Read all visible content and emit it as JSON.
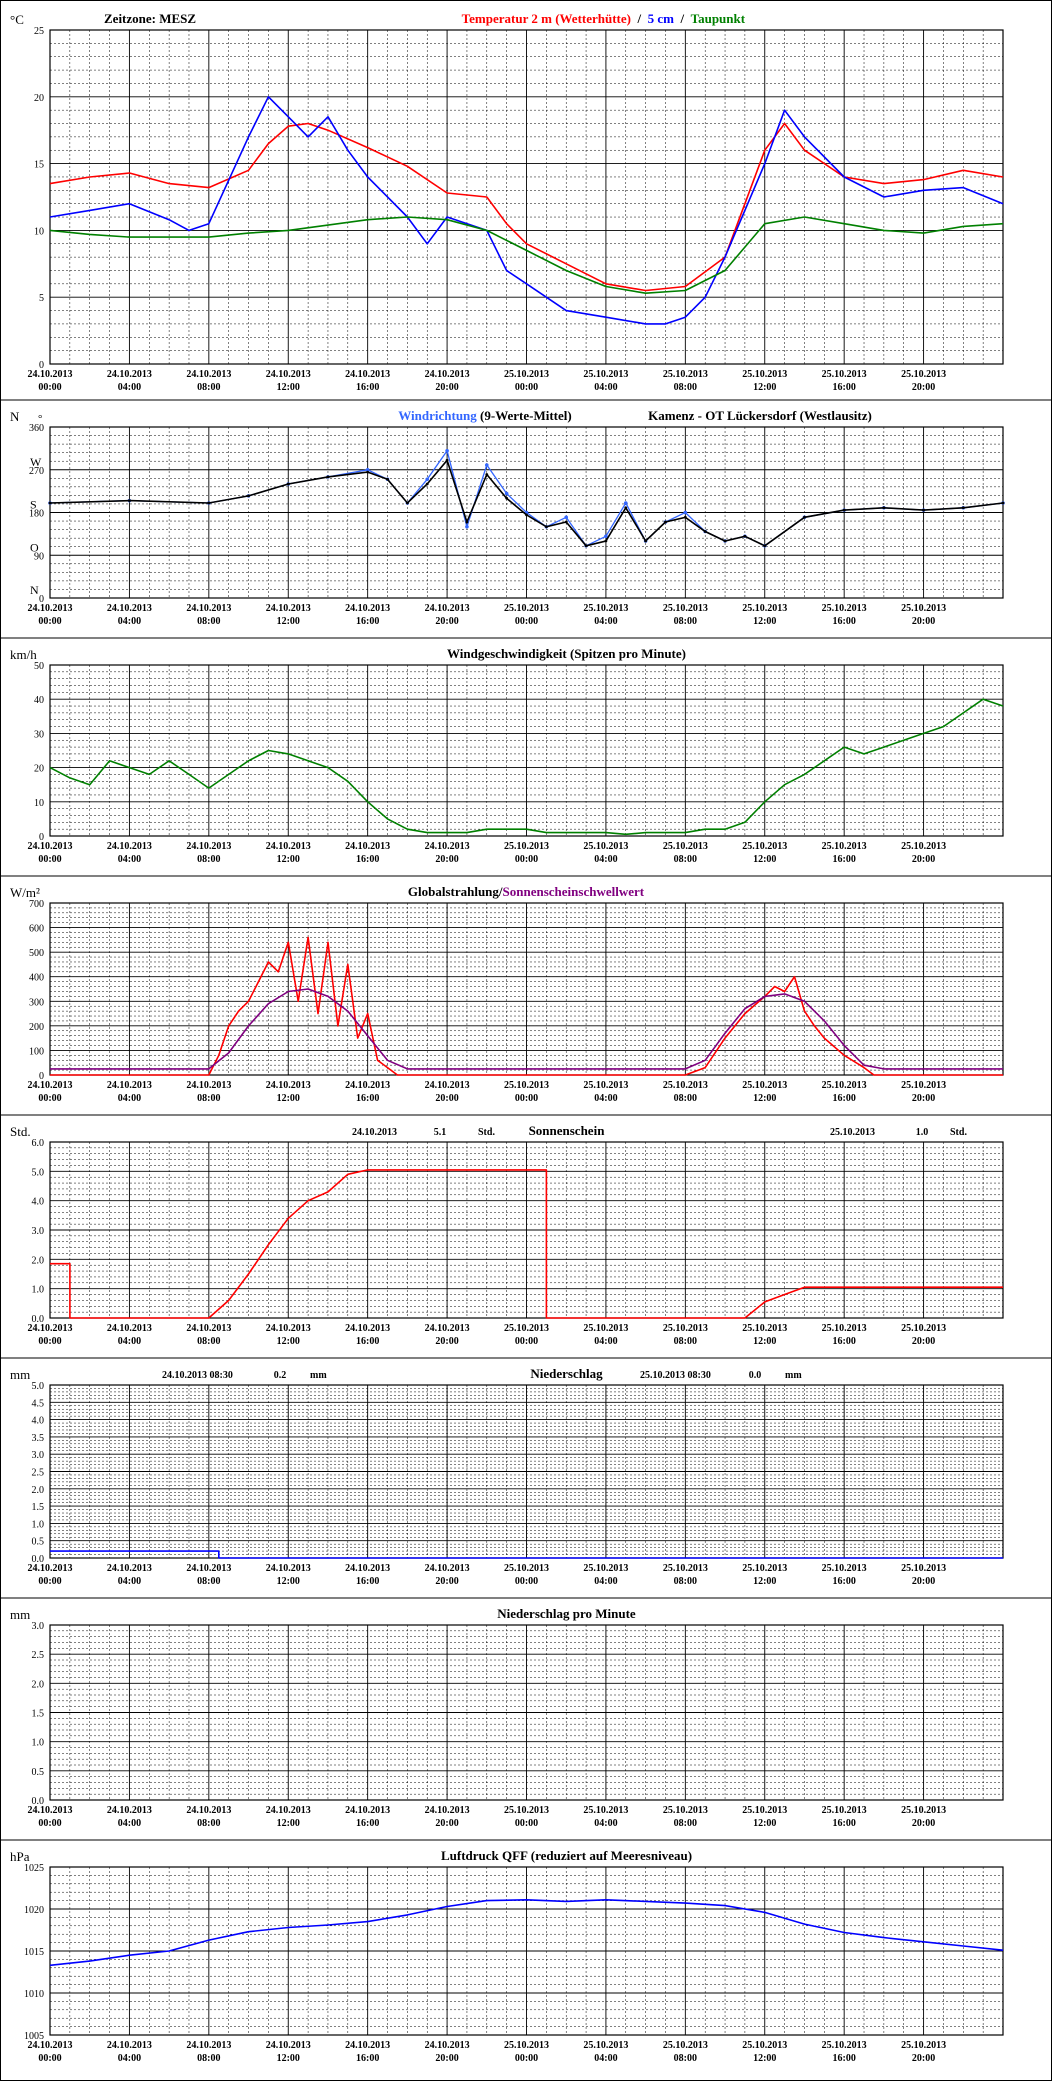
{
  "x_tick_labels": [
    [
      "24.10.2013",
      "00:00"
    ],
    [
      "24.10.2013",
      "04:00"
    ],
    [
      "24.10.2013",
      "08:00"
    ],
    [
      "24.10.2013",
      "12:00"
    ],
    [
      "24.10.2013",
      "16:00"
    ],
    [
      "24.10.2013",
      "20:00"
    ],
    [
      "25.10.2013",
      "00:00"
    ],
    [
      "25.10.2013",
      "04:00"
    ],
    [
      "25.10.2013",
      "08:00"
    ],
    [
      "25.10.2013",
      "12:00"
    ],
    [
      "25.10.2013",
      "16:00"
    ],
    [
      "25.10.2013",
      "20:00"
    ]
  ],
  "chart_data": [
    {
      "type": "line",
      "unit": "°C",
      "title_parts": [
        {
          "text": "Zeitzone: MESZ",
          "color": "#000000"
        },
        {
          "text": "Temperatur 2 m (Wetterhütte)",
          "color": "#ff0000"
        },
        {
          "text": "/",
          "color": "#000000"
        },
        {
          "text": "5 cm",
          "color": "#0000ff"
        },
        {
          "text": "/",
          "color": "#000000"
        },
        {
          "text": "Taupunkt",
          "color": "#008000"
        }
      ],
      "ylim": [
        0,
        25
      ],
      "yticks": [
        0,
        5,
        10,
        15,
        20,
        25
      ],
      "xlim_hours": [
        0,
        48
      ],
      "series": [
        {
          "name": "Temperatur 2 m (Wetterhütte)",
          "color": "#ff0000",
          "x": [
            0,
            2,
            4,
            6,
            8,
            10,
            11,
            12,
            13,
            14,
            16,
            18,
            20,
            22,
            23,
            24,
            26,
            28,
            30,
            32,
            34,
            36,
            37,
            38,
            40,
            42,
            44,
            46,
            48
          ],
          "y": [
            13.5,
            14,
            14.3,
            13.5,
            13.2,
            14.5,
            16.5,
            17.8,
            18,
            17.5,
            16.2,
            14.8,
            12.8,
            12.5,
            10.5,
            9,
            7.5,
            6,
            5.5,
            5.8,
            8,
            16,
            18,
            16,
            14,
            13.5,
            13.8,
            14.5,
            14
          ]
        },
        {
          "name": "5 cm",
          "color": "#0000ff",
          "x": [
            0,
            2,
            4,
            6,
            7,
            8,
            10,
            11,
            12,
            13,
            14,
            15,
            16,
            18,
            19,
            20,
            22,
            23,
            24,
            26,
            28,
            30,
            31,
            32,
            33,
            34,
            36,
            37,
            38,
            40,
            42,
            44,
            46,
            48
          ],
          "y": [
            11,
            11.5,
            12,
            10.8,
            10,
            10.5,
            17,
            20,
            18.5,
            17,
            18.5,
            16,
            14,
            11,
            9,
            11,
            10,
            7,
            6,
            4,
            3.5,
            3,
            3,
            3.5,
            5,
            8,
            15,
            19,
            17,
            14,
            12.5,
            13,
            13.2,
            12
          ]
        },
        {
          "name": "Taupunkt",
          "color": "#008000",
          "x": [
            0,
            2,
            4,
            6,
            8,
            10,
            12,
            14,
            16,
            18,
            20,
            22,
            24,
            26,
            28,
            30,
            32,
            34,
            36,
            38,
            40,
            42,
            44,
            46,
            48
          ],
          "y": [
            10,
            9.7,
            9.5,
            9.5,
            9.5,
            9.8,
            10,
            10.4,
            10.8,
            11,
            10.8,
            10,
            8.5,
            7,
            5.8,
            5.3,
            5.5,
            7,
            10.5,
            11,
            10.5,
            10,
            9.8,
            10.3,
            10.5
          ]
        }
      ]
    },
    {
      "type": "scatter",
      "unit": "N",
      "title_parts": [
        {
          "text": "Windrichtung",
          "color": "#3366ff"
        },
        {
          "text": "(9-Werte-Mittel)",
          "color": "#000000"
        },
        {
          "text": "Kamenz - OT Lückersdorf (Westlausitz)",
          "color": "#000000"
        }
      ],
      "ylim": [
        0,
        360
      ],
      "yticks": [
        0,
        90,
        180,
        270,
        360
      ],
      "direction_labels": [
        {
          "value": 360,
          "text": "N"
        },
        {
          "value": 270,
          "text": "W"
        },
        {
          "value": 180,
          "text": "S"
        },
        {
          "value": 90,
          "text": "O"
        },
        {
          "value": 0,
          "text": "N"
        }
      ],
      "xlim_hours": [
        0,
        48
      ],
      "series": [
        {
          "name": "Windrichtung",
          "color": "#3366ff",
          "x": [
            0,
            4,
            8,
            10,
            12,
            14,
            16,
            17,
            18,
            19,
            20,
            21,
            22,
            23,
            24,
            25,
            26,
            27,
            28,
            29,
            30,
            31,
            32,
            33,
            34,
            35,
            36,
            38,
            40,
            42,
            44,
            46,
            48
          ],
          "y": [
            200,
            205,
            200,
            215,
            240,
            255,
            270,
            250,
            200,
            250,
            310,
            150,
            280,
            220,
            180,
            150,
            170,
            110,
            130,
            200,
            120,
            160,
            180,
            140,
            120,
            130,
            110,
            170,
            185,
            190,
            185,
            190,
            200
          ]
        },
        {
          "name": "9-Werte-Mittel",
          "color": "#000000",
          "x": [
            0,
            4,
            8,
            10,
            12,
            14,
            16,
            17,
            18,
            19,
            20,
            21,
            22,
            23,
            24,
            25,
            26,
            27,
            28,
            29,
            30,
            31,
            32,
            33,
            34,
            35,
            36,
            38,
            40,
            42,
            44,
            46,
            48
          ],
          "y": [
            200,
            205,
            200,
            215,
            240,
            255,
            265,
            250,
            200,
            240,
            290,
            160,
            260,
            210,
            175,
            150,
            160,
            110,
            120,
            190,
            120,
            160,
            170,
            140,
            120,
            130,
            110,
            170,
            185,
            190,
            185,
            190,
            200
          ]
        }
      ]
    },
    {
      "type": "line",
      "unit": "km/h",
      "title": "Windgeschwindigkeit (Spitzen pro Minute)",
      "ylim": [
        0,
        50
      ],
      "yticks": [
        0,
        10,
        20,
        30,
        40,
        50
      ],
      "xlim_hours": [
        0,
        48
      ],
      "series": [
        {
          "name": "Windgeschwindigkeit",
          "color": "#008000",
          "x": [
            0,
            1,
            2,
            3,
            4,
            5,
            6,
            7,
            8,
            9,
            10,
            11,
            12,
            13,
            14,
            15,
            16,
            17,
            18,
            19,
            20,
            21,
            22,
            23,
            24,
            25,
            26,
            27,
            28,
            29,
            30,
            31,
            32,
            33,
            34,
            35,
            36,
            37,
            38,
            39,
            40,
            41,
            42,
            43,
            44,
            45,
            46,
            47,
            48
          ],
          "y": [
            20,
            17,
            15,
            22,
            20,
            18,
            22,
            18,
            14,
            18,
            22,
            25,
            24,
            22,
            20,
            16,
            10,
            5,
            2,
            1,
            1,
            1,
            2,
            2,
            2,
            1,
            1,
            1,
            1,
            0.5,
            1,
            1,
            1,
            2,
            2,
            4,
            10,
            15,
            18,
            22,
            26,
            24,
            26,
            28,
            30,
            32,
            36,
            40,
            38
          ]
        }
      ]
    },
    {
      "type": "line",
      "unit": "W/m²",
      "title_parts": [
        {
          "text": "Globalstrahlung/",
          "color": "#000000"
        },
        {
          "text": "Sonnenscheinschwellwert",
          "color": "#800080"
        }
      ],
      "ylim": [
        0,
        700
      ],
      "yticks": [
        0,
        100,
        200,
        300,
        400,
        500,
        600,
        700
      ],
      "xlim_hours": [
        0,
        48
      ],
      "series": [
        {
          "name": "Globalstrahlung",
          "color": "#ff0000",
          "x": [
            0,
            8,
            8.5,
            9,
            9.5,
            10,
            10.5,
            11,
            11.5,
            12,
            12.5,
            13,
            13.5,
            14,
            14.5,
            15,
            15.5,
            16,
            16.5,
            17,
            17.5,
            18,
            32,
            33,
            34,
            35,
            36,
            36.5,
            37,
            37.5,
            38,
            38.5,
            39,
            40,
            41,
            41.5,
            48
          ],
          "y": [
            0,
            0,
            80,
            200,
            260,
            300,
            380,
            460,
            420,
            540,
            300,
            560,
            250,
            540,
            200,
            450,
            150,
            250,
            60,
            30,
            0,
            0,
            0,
            30,
            150,
            250,
            320,
            360,
            340,
            400,
            260,
            200,
            150,
            80,
            30,
            0,
            0
          ]
        },
        {
          "name": "Sonnenscheinschwellwert",
          "color": "#800080",
          "x": [
            0,
            8,
            9,
            10,
            11,
            12,
            13,
            14,
            15,
            16,
            17,
            18,
            32,
            33,
            34,
            35,
            36,
            37,
            38,
            39,
            40,
            41,
            42,
            48
          ],
          "y": [
            25,
            25,
            90,
            200,
            290,
            340,
            350,
            320,
            260,
            160,
            60,
            25,
            25,
            60,
            170,
            270,
            320,
            330,
            300,
            220,
            120,
            40,
            25,
            25
          ]
        }
      ]
    },
    {
      "type": "line",
      "unit": "Std.",
      "title": "Sonnenschein",
      "annotations": [
        {
          "date": "24.10.2013",
          "value": "5.1",
          "unit": "Std."
        },
        {
          "date": "25.10.2013",
          "value": "1.0",
          "unit": "Std."
        }
      ],
      "ylim": [
        0,
        6
      ],
      "yticks": [
        0,
        1,
        2,
        3,
        4,
        5,
        6
      ],
      "xlim_hours": [
        0,
        48
      ],
      "series": [
        {
          "name": "Sonnenschein",
          "color": "#ff0000",
          "x": [
            0,
            1,
            1,
            8,
            9,
            10,
            11,
            12,
            13,
            14,
            15,
            16,
            25,
            25,
            35,
            36,
            37,
            38,
            48
          ],
          "y": [
            1.85,
            1.85,
            0,
            0,
            0.6,
            1.5,
            2.5,
            3.4,
            4,
            4.3,
            4.9,
            5.05,
            5.05,
            0,
            0,
            0.55,
            0.8,
            1.05,
            1.05
          ]
        }
      ]
    },
    {
      "type": "line",
      "unit": "mm",
      "title": "Niederschlag",
      "annotations": [
        {
          "date": "24.10.2013 08:30",
          "value": "0.2",
          "unit": "mm"
        },
        {
          "date": "25.10.2013 08:30",
          "value": "0.0",
          "unit": "mm"
        }
      ],
      "ylim": [
        0,
        5
      ],
      "yticks": [
        0,
        0.5,
        1,
        1.5,
        2,
        2.5,
        3,
        3.5,
        4,
        4.5,
        5
      ],
      "xlim_hours": [
        0,
        48
      ],
      "series": [
        {
          "name": "Niederschlag",
          "color": "#0000ff",
          "x": [
            0,
            8.5,
            8.5,
            48
          ],
          "y": [
            0.2,
            0.2,
            0,
            0
          ]
        }
      ]
    },
    {
      "type": "line",
      "unit": "mm",
      "title": "Niederschlag pro Minute",
      "ylim": [
        0,
        3
      ],
      "yticks": [
        0,
        0.5,
        1,
        1.5,
        2,
        2.5,
        3
      ],
      "xlim_hours": [
        0,
        48
      ],
      "series": []
    },
    {
      "type": "line",
      "unit": "hPa",
      "title": "Luftdruck QFF (reduziert auf Meeresniveau)",
      "ylim": [
        1005,
        1025
      ],
      "yticks": [
        1005,
        1010,
        1015,
        1020,
        1025
      ],
      "xlim_hours": [
        0,
        48
      ],
      "series": [
        {
          "name": "Luftdruck QFF",
          "color": "#0000ff",
          "x": [
            0,
            2,
            4,
            6,
            8,
            10,
            12,
            14,
            16,
            18,
            20,
            22,
            24,
            26,
            28,
            30,
            32,
            34,
            36,
            38,
            40,
            42,
            44,
            46,
            48
          ],
          "y": [
            1013.3,
            1013.8,
            1014.5,
            1015,
            1016.3,
            1017.3,
            1017.8,
            1018.1,
            1018.5,
            1019.3,
            1020.3,
            1021,
            1021.1,
            1020.9,
            1021.1,
            1020.9,
            1020.7,
            1020.4,
            1019.6,
            1018.2,
            1017.2,
            1016.6,
            1016.1,
            1015.6,
            1015.1
          ]
        }
      ]
    }
  ]
}
